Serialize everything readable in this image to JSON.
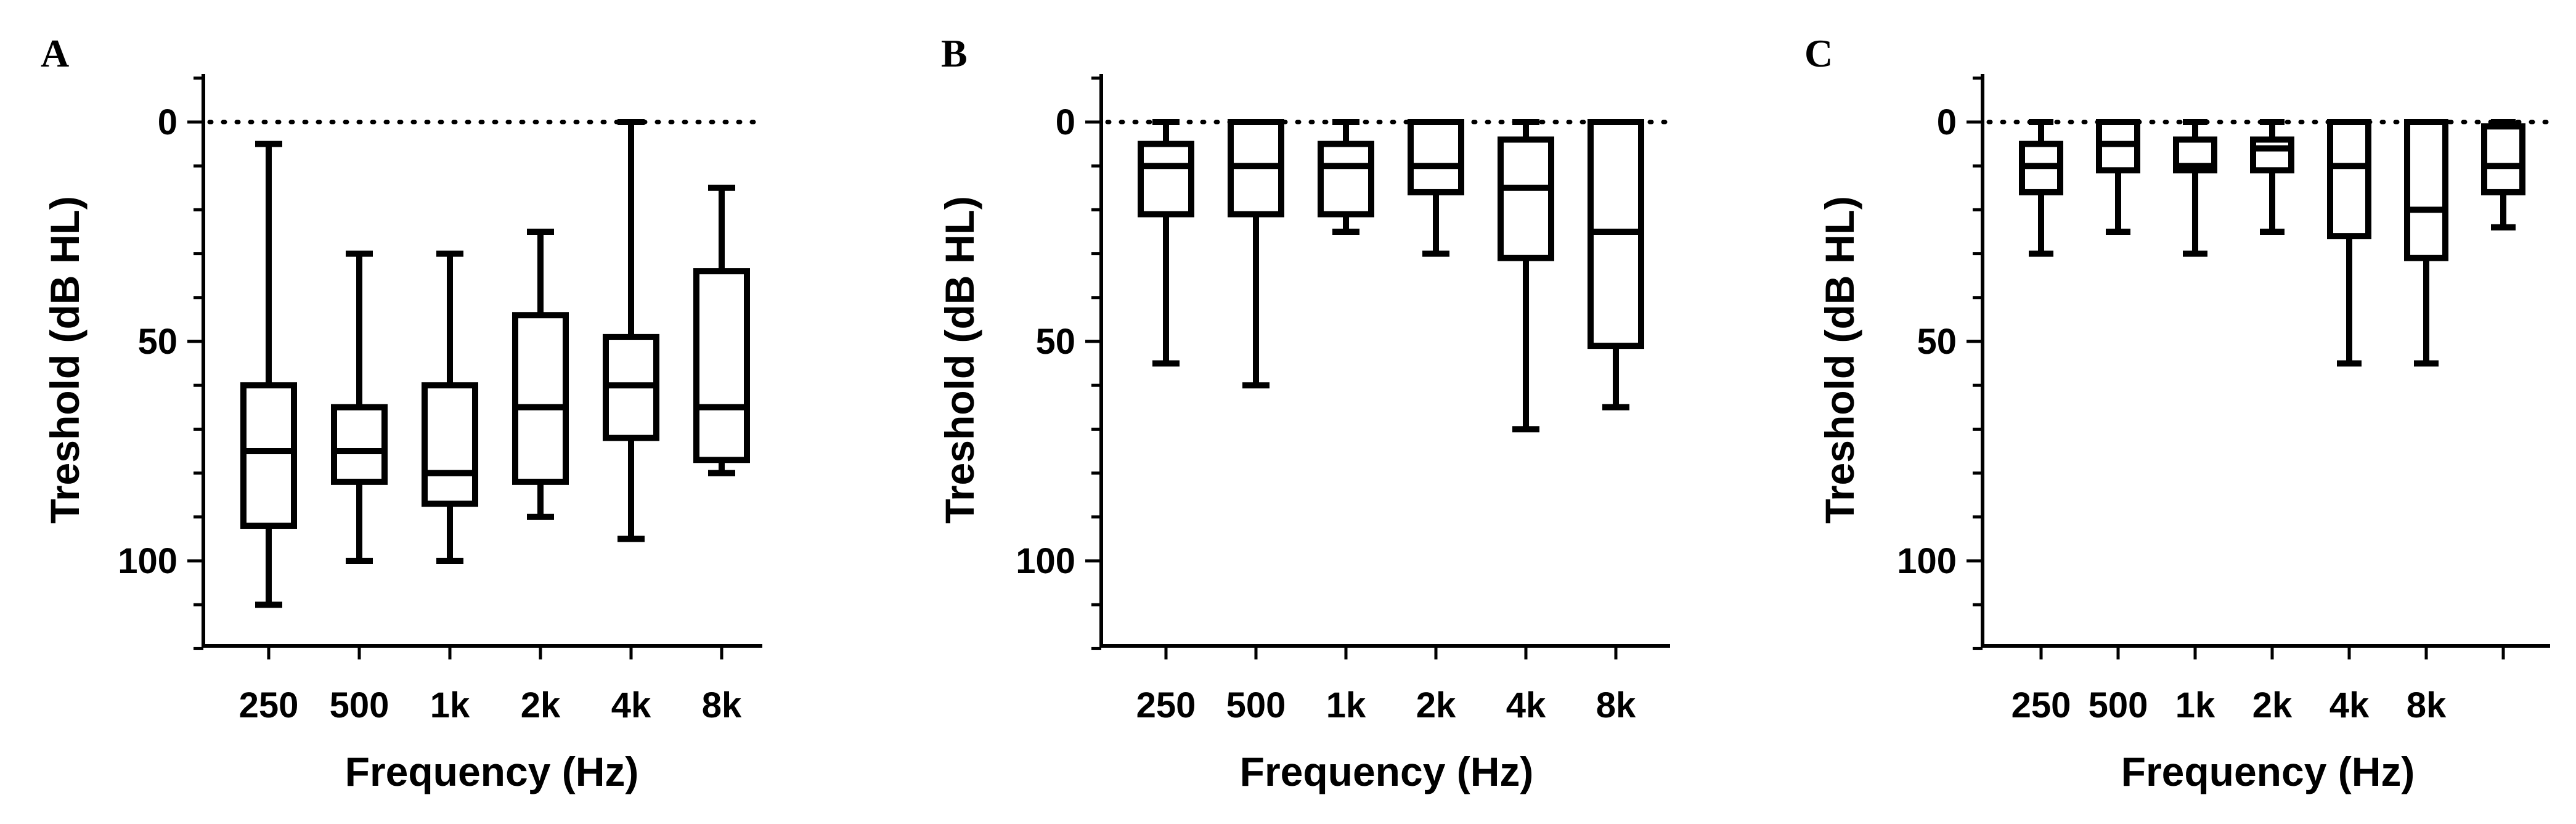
{
  "chart_data": [
    {
      "type": "box",
      "panel_label": "A",
      "xlabel": "Frequency (Hz)",
      "ylabel": "Treshold (dB  HL)",
      "categories": [
        "250",
        "500",
        "1k",
        "2k",
        "4k",
        "8k"
      ],
      "y_axis": {
        "range": [
          0,
          120
        ],
        "inverted": true,
        "ticks": [
          "0",
          "50",
          "100"
        ]
      },
      "reference_line": {
        "y": 0,
        "style": "dotted"
      },
      "boxes": [
        {
          "min": 5,
          "q1": 60,
          "median": 75,
          "q3": 92,
          "max": 110
        },
        {
          "min": 30,
          "q1": 65,
          "median": 75,
          "q3": 82,
          "max": 100
        },
        {
          "min": 30,
          "q1": 60,
          "median": 80,
          "q3": 87,
          "max": 100
        },
        {
          "min": 25,
          "q1": 44,
          "median": 65,
          "q3": 82,
          "max": 90
        },
        {
          "min": 0,
          "q1": 49,
          "median": 60,
          "q3": 72,
          "max": 95
        },
        {
          "min": 15,
          "q1": 34,
          "median": 65,
          "q3": 77,
          "max": 80
        }
      ]
    },
    {
      "type": "box",
      "panel_label": "B",
      "xlabel": "Frequency (Hz)",
      "ylabel": "Treshold (dB HL)",
      "categories": [
        "250",
        "500",
        "1k",
        "2k",
        "4k",
        "8k"
      ],
      "y_axis": {
        "range": [
          0,
          120
        ],
        "inverted": true,
        "ticks": [
          "0",
          "50",
          "100"
        ]
      },
      "reference_line": {
        "y": 0,
        "style": "dotted"
      },
      "boxes": [
        {
          "min": 0,
          "q1": 5,
          "median": 10,
          "q3": 21,
          "max": 55
        },
        {
          "min": 0,
          "q1": 0,
          "median": 10,
          "q3": 21,
          "max": 60
        },
        {
          "min": 0,
          "q1": 5,
          "median": 10,
          "q3": 21,
          "max": 25
        },
        {
          "min": 0,
          "q1": 0,
          "median": 10,
          "q3": 16,
          "max": 30
        },
        {
          "min": 0,
          "q1": 4,
          "median": 15,
          "q3": 31,
          "max": 70
        },
        {
          "min": 0,
          "q1": 0,
          "median": 25,
          "q3": 51,
          "max": 65
        }
      ]
    },
    {
      "type": "box",
      "panel_label": "C",
      "xlabel": "Frequency (Hz)",
      "ylabel": "Treshold (dB HL)",
      "categories": [
        "250",
        "500",
        "1k",
        "2k",
        "4k",
        "8k",
        ""
      ],
      "y_axis": {
        "range": [
          0,
          120
        ],
        "inverted": true,
        "ticks": [
          "0",
          "50",
          "100"
        ]
      },
      "reference_line": {
        "y": 0,
        "style": "dotted"
      },
      "boxes": [
        {
          "min": 0,
          "q1": 5,
          "median": 10,
          "q3": 16,
          "max": 30
        },
        {
          "min": 0,
          "q1": 0,
          "median": 5,
          "q3": 11,
          "max": 25
        },
        {
          "min": 0,
          "q1": 4,
          "median": 10,
          "q3": 11,
          "max": 30
        },
        {
          "min": 0,
          "q1": 4,
          "median": 6,
          "q3": 11,
          "max": 25
        },
        {
          "min": 0,
          "q1": 0,
          "median": 10,
          "q3": 26,
          "max": 55
        },
        {
          "min": 0,
          "q1": 0,
          "median": 20,
          "q3": 31,
          "max": 55
        },
        {
          "min": 0,
          "q1": 1,
          "median": 10,
          "q3": 16,
          "max": 24
        }
      ]
    }
  ]
}
